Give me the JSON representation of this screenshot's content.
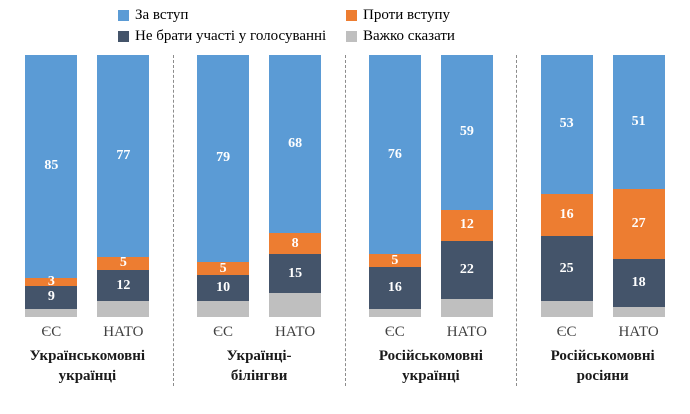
{
  "chart_data": {
    "type": "bar",
    "stacked": true,
    "orientation": "vertical",
    "value_unit": "percent",
    "axis_range": [
      0,
      100
    ],
    "grid": false,
    "legend_position": "top",
    "series": [
      {
        "name": "За вступ",
        "color": "#5B9BD5"
      },
      {
        "name": "Проти вступу",
        "color": "#ED7D31"
      },
      {
        "name": "Не брати участі у голосуванні",
        "color": "#44546A"
      },
      {
        "name": "Важко сказати",
        "color": "#BFBFBF"
      }
    ],
    "legend_columns": [
      [
        0,
        2
      ],
      [
        1,
        3
      ]
    ],
    "series_labels_visible": [
      true,
      true,
      true,
      false
    ],
    "categories_per_group": [
      "ЄС",
      "НАТО"
    ],
    "groups": [
      {
        "label": "Українськомовні\nукраїнці",
        "bars": [
          {
            "category": "ЄС",
            "values": [
              85,
              3,
              9,
              3
            ]
          },
          {
            "category": "НАТО",
            "values": [
              77,
              5,
              12,
              6
            ]
          }
        ]
      },
      {
        "label": "Українці-\nбілінгви",
        "bars": [
          {
            "category": "ЄС",
            "values": [
              79,
              5,
              10,
              6
            ]
          },
          {
            "category": "НАТО",
            "values": [
              68,
              8,
              15,
              9
            ]
          }
        ]
      },
      {
        "label": "Російськомовні\nукраїнці",
        "bars": [
          {
            "category": "ЄС",
            "values": [
              76,
              5,
              16,
              3
            ]
          },
          {
            "category": "НАТО",
            "values": [
              59,
              12,
              22,
              7
            ]
          }
        ]
      },
      {
        "label": "Російськомовні\nросіяни",
        "bars": [
          {
            "category": "ЄС",
            "values": [
              53,
              16,
              25,
              6
            ]
          },
          {
            "category": "НАТО",
            "values": [
              51,
              27,
              18,
              4
            ]
          }
        ]
      }
    ]
  }
}
